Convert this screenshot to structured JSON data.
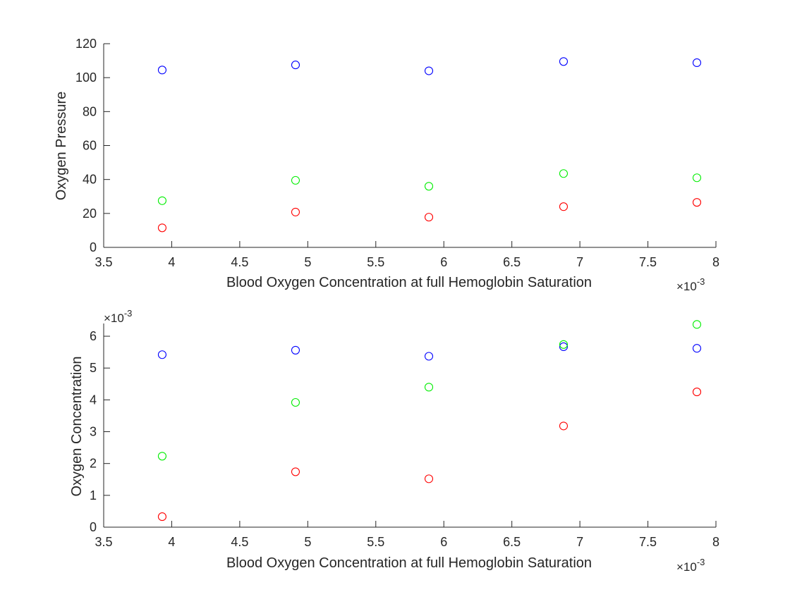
{
  "chart_data": [
    {
      "type": "scatter",
      "id": "top",
      "xlabel": "Blood Oxygen Concentration at full Hemoglobin Saturation",
      "ylabel": "Oxygen Pressure",
      "x_exponent_label": "×10",
      "x_exponent": "-3",
      "y_exponent_label": "",
      "y_exponent": "",
      "x_scale": 0.001,
      "y_scale": 1,
      "xlim": [
        3.5,
        8
      ],
      "ylim": [
        0,
        120
      ],
      "xticks": [
        3.5,
        4,
        4.5,
        5,
        5.5,
        6,
        6.5,
        7,
        7.5,
        8
      ],
      "xtick_labels": [
        "3.5",
        "4",
        "4.5",
        "5",
        "5.5",
        "6",
        "6.5",
        "7",
        "7.5",
        "8"
      ],
      "yticks": [
        0,
        20,
        40,
        60,
        80,
        100,
        120
      ],
      "ytick_labels": [
        "0",
        "20",
        "40",
        "60",
        "80",
        "100",
        "120"
      ],
      "grid": false,
      "x": [
        3.93,
        4.91,
        5.89,
        6.88,
        7.86
      ],
      "series": [
        {
          "color": "#0000ff",
          "values": [
            104.5,
            107.5,
            104.0,
            109.5,
            108.8
          ]
        },
        {
          "color": "#00ee00",
          "values": [
            27.5,
            39.5,
            36.0,
            43.5,
            41.0
          ]
        },
        {
          "color": "#ff0000",
          "values": [
            11.5,
            20.8,
            17.8,
            24.0,
            26.5
          ]
        }
      ]
    },
    {
      "type": "scatter",
      "id": "bottom",
      "xlabel": "Blood Oxygen Concentration at full Hemoglobin Saturation",
      "ylabel": "Oxygen Concentration",
      "x_exponent_label": "×10",
      "x_exponent": "-3",
      "y_exponent_label": "×10",
      "y_exponent": "-3",
      "x_scale": 0.001,
      "y_scale": 0.001,
      "xlim": [
        3.5,
        8
      ],
      "ylim": [
        0,
        6.4
      ],
      "xticks": [
        3.5,
        4,
        4.5,
        5,
        5.5,
        6,
        6.5,
        7,
        7.5,
        8
      ],
      "xtick_labels": [
        "3.5",
        "4",
        "4.5",
        "5",
        "5.5",
        "6",
        "6.5",
        "7",
        "7.5",
        "8"
      ],
      "yticks": [
        0,
        1,
        2,
        3,
        4,
        5,
        6
      ],
      "ytick_labels": [
        "0",
        "1",
        "2",
        "3",
        "4",
        "5",
        "6"
      ],
      "grid": false,
      "x": [
        3.93,
        4.91,
        5.89,
        6.88,
        7.86
      ],
      "series": [
        {
          "color": "#0000ff",
          "values": [
            5.42,
            5.56,
            5.37,
            5.67,
            5.62
          ]
        },
        {
          "color": "#00ee00",
          "values": [
            2.23,
            3.92,
            4.4,
            5.74,
            6.37
          ]
        },
        {
          "color": "#ff0000",
          "values": [
            0.33,
            1.74,
            1.52,
            3.18,
            4.25
          ]
        }
      ]
    }
  ]
}
